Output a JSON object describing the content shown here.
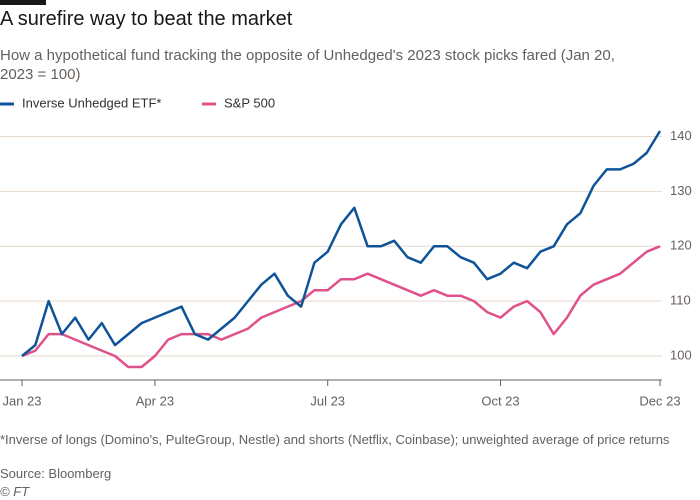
{
  "chart_data": {
    "type": "line",
    "title": "A surefire way to beat the market",
    "subtitle": "How a hypothetical fund tracking the opposite of Unhedged's 2023 stock picks fared (Jan 20, 2023 = 100)",
    "footnote": "*Inverse of longs (Domino's, PulteGroup, Nestle) and shorts (Netflix, Coinbase); unweighted average of price returns",
    "source": "Source: Bloomberg",
    "credit": "© FT",
    "categories": [
      "Jan 23",
      null,
      null,
      null,
      null,
      null,
      null,
      null,
      null,
      null,
      "Apr 23",
      null,
      null,
      null,
      null,
      null,
      null,
      null,
      null,
      null,
      null,
      null,
      null,
      "Jul 23",
      null,
      null,
      null,
      null,
      null,
      null,
      null,
      null,
      null,
      null,
      null,
      null,
      "Oct 23",
      null,
      null,
      null,
      null,
      null,
      null,
      null,
      null,
      null,
      null,
      null,
      "Dec 23"
    ],
    "series": [
      {
        "name": "Inverse Unhedged ETF*",
        "color": "#0f5499",
        "values": [
          100,
          102,
          110,
          104,
          107,
          103,
          106,
          102,
          104,
          106,
          107,
          108,
          109,
          104,
          103,
          105,
          107,
          110,
          113,
          115,
          111,
          109,
          117,
          119,
          124,
          127,
          120,
          120,
          121,
          118,
          117,
          120,
          120,
          118,
          117,
          114,
          115,
          117,
          116,
          119,
          120,
          124,
          126,
          131,
          134,
          134,
          135,
          137,
          141
        ]
      },
      {
        "name": "S&P 500",
        "color": "#e0508a",
        "values": [
          100,
          101,
          104,
          104,
          103,
          102,
          101,
          100,
          98,
          98,
          100,
          103,
          104,
          104,
          104,
          103,
          104,
          105,
          107,
          108,
          109,
          110,
          112,
          112,
          114,
          114,
          115,
          114,
          113,
          112,
          111,
          112,
          111,
          111,
          110,
          108,
          107,
          109,
          110,
          108,
          104,
          107,
          111,
          113,
          114,
          115,
          117,
          119,
          120
        ]
      }
    ],
    "ylim": [
      96,
      143
    ],
    "yticks": [
      100,
      110,
      120,
      130,
      140
    ],
    "grid": true
  }
}
